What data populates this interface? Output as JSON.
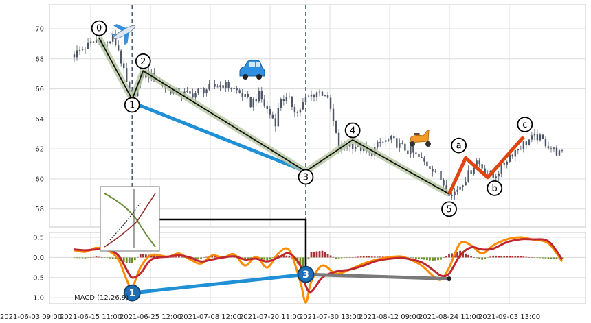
{
  "chart_data": [
    {
      "type": "candlestick",
      "panel": "price",
      "ylim": [
        56.8,
        71.6
      ],
      "yticks": [
        58,
        60,
        62,
        64,
        66,
        68,
        70
      ],
      "grid": true,
      "candle_color": "#4d5566",
      "price_path": [
        [
          0,
          68.3
        ],
        [
          4,
          68.8
        ],
        [
          8,
          69.2
        ],
        [
          12,
          69.0
        ],
        [
          14,
          69.4
        ],
        [
          16,
          68.6
        ],
        [
          20,
          65.6
        ],
        [
          22,
          65.8
        ],
        [
          24,
          66.8
        ],
        [
          26,
          67.0
        ],
        [
          30,
          66.6
        ],
        [
          34,
          66.0
        ],
        [
          38,
          65.7
        ],
        [
          42,
          65.6
        ],
        [
          46,
          65.9
        ],
        [
          50,
          66.1
        ],
        [
          54,
          66.3
        ],
        [
          58,
          66.0
        ],
        [
          61,
          65.6
        ],
        [
          64,
          65.0
        ],
        [
          67,
          65.6
        ],
        [
          70,
          64.6
        ],
        [
          73,
          63.8
        ],
        [
          75,
          65.4
        ],
        [
          78,
          65.2
        ],
        [
          81,
          64.4
        ],
        [
          84,
          65.3
        ],
        [
          88,
          65.8
        ],
        [
          91,
          65.7
        ],
        [
          93,
          64.6
        ],
        [
          96,
          62.0
        ],
        [
          99,
          62.3
        ],
        [
          103,
          62.2
        ],
        [
          107,
          61.6
        ],
        [
          111,
          62.4
        ],
        [
          115,
          62.6
        ],
        [
          119,
          62.1
        ],
        [
          123,
          61.7
        ],
        [
          127,
          61.1
        ],
        [
          131,
          60.6
        ],
        [
          135,
          59.4
        ],
        [
          137,
          58.9
        ],
        [
          140,
          59.6
        ],
        [
          143,
          60.3
        ],
        [
          146,
          61.2
        ],
        [
          149,
          60.6
        ],
        [
          152,
          60.1
        ],
        [
          155,
          60.8
        ],
        [
          158,
          61.6
        ],
        [
          162,
          62.2
        ],
        [
          165,
          62.6
        ],
        [
          168,
          62.8
        ],
        [
          171,
          62.4
        ],
        [
          174,
          61.9
        ],
        [
          177,
          61.6
        ]
      ],
      "elliott_wave": {
        "labels": [
          "0",
          "1",
          "2",
          "3",
          "4",
          "5"
        ],
        "points": [
          [
            9,
            69.4
          ],
          [
            21,
            65.3
          ],
          [
            25,
            67.2
          ],
          [
            84,
            60.5
          ],
          [
            101,
            62.6
          ],
          [
            136,
            59.0
          ]
        ]
      },
      "corrective_wave": {
        "labels": [
          "a",
          "b",
          "c"
        ],
        "points": [
          [
            136,
            59.0
          ],
          [
            142,
            61.4
          ],
          [
            150,
            60.1
          ],
          [
            163,
            62.8
          ]
        ]
      },
      "wave_1_3_line": [
        [
          21,
          65.1
        ],
        [
          84,
          60.5
        ]
      ],
      "dashed_vlines": [
        21,
        84
      ],
      "icons": [
        "airplane",
        "car",
        "scooter"
      ]
    },
    {
      "type": "macd",
      "panel": "indicator",
      "label": "MACD (12,26,9)",
      "ylim": [
        -1.15,
        0.62
      ],
      "yticks": [
        -1.0,
        -0.5,
        0.0,
        0.5
      ],
      "grid": true,
      "xticks": [
        "2021-06-03 09:00",
        "2021-06-15 11:00",
        "2021-06-25 12:00",
        "2021-07-08 12:00",
        "2021-07-20 11:00",
        "2021-07-30 13:00",
        "2021-08-12 09:00",
        "2021-08-24 11:00",
        "2021-09-03 13:00"
      ],
      "macd_line": [
        [
          0,
          0.18
        ],
        [
          4,
          0.14
        ],
        [
          8,
          0.24
        ],
        [
          12,
          0.18
        ],
        [
          16,
          -0.05
        ],
        [
          19,
          -0.55
        ],
        [
          21,
          -0.75
        ],
        [
          24,
          -0.25
        ],
        [
          28,
          0.06
        ],
        [
          34,
          0.02
        ],
        [
          38,
          0.1
        ],
        [
          42,
          -0.05
        ],
        [
          46,
          -0.15
        ],
        [
          50,
          0.05
        ],
        [
          54,
          0.0
        ],
        [
          58,
          0.08
        ],
        [
          62,
          -0.2
        ],
        [
          66,
          0.02
        ],
        [
          70,
          -0.25
        ],
        [
          74,
          0.1
        ],
        [
          78,
          0.18
        ],
        [
          82,
          -0.6
        ],
        [
          84,
          -1.12
        ],
        [
          86,
          -0.6
        ],
        [
          90,
          -0.2
        ],
        [
          95,
          -0.4
        ],
        [
          100,
          -0.3
        ],
        [
          105,
          -0.15
        ],
        [
          110,
          -0.05
        ],
        [
          116,
          0.02
        ],
        [
          120,
          0.0
        ],
        [
          126,
          -0.2
        ],
        [
          130,
          -0.45
        ],
        [
          133,
          -0.55
        ],
        [
          136,
          -0.25
        ],
        [
          140,
          0.35
        ],
        [
          144,
          0.3
        ],
        [
          148,
          0.1
        ],
        [
          152,
          0.3
        ],
        [
          157,
          0.45
        ],
        [
          162,
          0.5
        ],
        [
          166,
          0.45
        ],
        [
          172,
          0.35
        ],
        [
          177,
          -0.1
        ]
      ],
      "signal_line": [
        [
          0,
          0.2
        ],
        [
          4,
          0.18
        ],
        [
          8,
          0.2
        ],
        [
          12,
          0.2
        ],
        [
          16,
          0.05
        ],
        [
          19,
          -0.3
        ],
        [
          21,
          -0.5
        ],
        [
          24,
          -0.4
        ],
        [
          28,
          -0.05
        ],
        [
          34,
          0.02
        ],
        [
          38,
          0.05
        ],
        [
          42,
          0.0
        ],
        [
          46,
          -0.1
        ],
        [
          50,
          -0.05
        ],
        [
          54,
          0.0
        ],
        [
          58,
          0.03
        ],
        [
          62,
          -0.05
        ],
        [
          66,
          -0.03
        ],
        [
          70,
          -0.1
        ],
        [
          74,
          0.0
        ],
        [
          78,
          0.1
        ],
        [
          82,
          -0.2
        ],
        [
          84,
          -0.7
        ],
        [
          86,
          -0.85
        ],
        [
          90,
          -0.5
        ],
        [
          95,
          -0.35
        ],
        [
          100,
          -0.3
        ],
        [
          105,
          -0.2
        ],
        [
          110,
          -0.08
        ],
        [
          116,
          -0.02
        ],
        [
          120,
          -0.02
        ],
        [
          126,
          -0.12
        ],
        [
          130,
          -0.3
        ],
        [
          133,
          -0.45
        ],
        [
          136,
          -0.4
        ],
        [
          140,
          0.05
        ],
        [
          144,
          0.25
        ],
        [
          148,
          0.2
        ],
        [
          152,
          0.22
        ],
        [
          157,
          0.38
        ],
        [
          162,
          0.45
        ],
        [
          166,
          0.45
        ],
        [
          172,
          0.4
        ],
        [
          177,
          -0.05
        ]
      ],
      "macd_color": "#ff8c00",
      "signal_color": "#c0282d",
      "histogram_pos_color": "#a83232",
      "histogram_neg_color": "#6b8e23",
      "divergence_points": {
        "labels": [
          "1",
          "3",
          ""
        ],
        "points": [
          [
            21,
            -0.88
          ],
          [
            84,
            -0.42
          ],
          [
            136,
            -0.53
          ]
        ]
      }
    }
  ]
}
